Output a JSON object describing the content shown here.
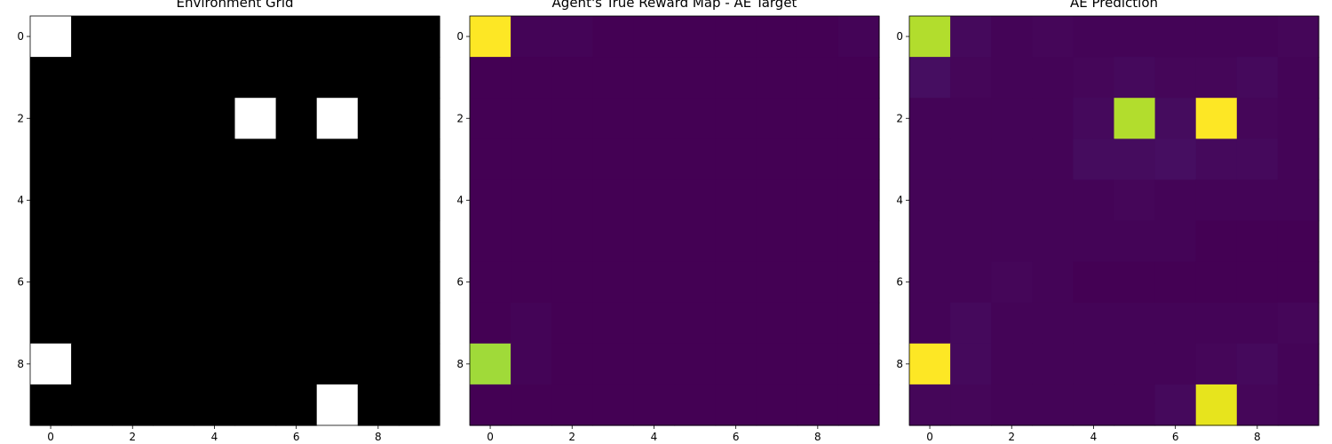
{
  "chart_data": [
    {
      "type": "heatmap",
      "title": "Environment Grid",
      "colormap": "gray",
      "vmin": 0,
      "vmax": 1,
      "x_ticks": [
        0,
        2,
        4,
        6,
        8
      ],
      "y_ticks": [
        0,
        2,
        4,
        6,
        8
      ],
      "grid": false,
      "values": [
        [
          1,
          0,
          0,
          0,
          0,
          0,
          0,
          0,
          0,
          0
        ],
        [
          0,
          0,
          0,
          0,
          0,
          0,
          0,
          0,
          0,
          0
        ],
        [
          0,
          0,
          0,
          0,
          0,
          1,
          0,
          1,
          0,
          0
        ],
        [
          0,
          0,
          0,
          0,
          0,
          0,
          0,
          0,
          0,
          0
        ],
        [
          0,
          0,
          0,
          0,
          0,
          0,
          0,
          0,
          0,
          0
        ],
        [
          0,
          0,
          0,
          0,
          0,
          0,
          0,
          0,
          0,
          0
        ],
        [
          0,
          0,
          0,
          0,
          0,
          0,
          0,
          0,
          0,
          0
        ],
        [
          0,
          0,
          0,
          0,
          0,
          0,
          0,
          0,
          0,
          0
        ],
        [
          1,
          0,
          0,
          0,
          0,
          0,
          0,
          0,
          0,
          0
        ],
        [
          0,
          0,
          0,
          0,
          0,
          0,
          0,
          1,
          0,
          0
        ]
      ]
    },
    {
      "type": "heatmap",
      "title": "Agent's True Reward Map - AE Target",
      "colormap": "viridis",
      "vmin": 0,
      "vmax": 1,
      "x_ticks": [
        0,
        2,
        4,
        6,
        8
      ],
      "y_ticks": [
        0,
        2,
        4,
        6,
        8
      ],
      "grid": false,
      "values": [
        [
          1.0,
          0.01,
          0.01,
          0.0,
          0.0,
          0.0,
          0.0,
          0.0,
          0.0,
          0.01
        ],
        [
          0.0,
          0.0,
          0.0,
          0.0,
          0.0,
          0.0,
          0.0,
          0.0,
          0.0,
          0.0
        ],
        [
          0.0,
          0.0,
          0.0,
          0.0,
          0.0,
          0.0,
          0.0,
          0.0,
          0.0,
          0.0
        ],
        [
          0.0,
          0.0,
          0.0,
          0.0,
          0.0,
          0.0,
          0.0,
          0.0,
          0.0,
          0.0
        ],
        [
          0.0,
          0.0,
          0.0,
          0.0,
          0.0,
          0.0,
          0.0,
          0.0,
          0.0,
          0.0
        ],
        [
          0.0,
          0.0,
          0.0,
          0.0,
          0.0,
          0.0,
          0.0,
          0.0,
          0.0,
          0.0
        ],
        [
          0.0,
          0.0,
          0.0,
          0.0,
          0.0,
          0.0,
          0.0,
          0.0,
          0.0,
          0.0
        ],
        [
          0.0,
          0.01,
          0.0,
          0.0,
          0.0,
          0.0,
          0.0,
          0.0,
          0.0,
          0.0
        ],
        [
          0.82,
          0.01,
          0.0,
          0.0,
          0.0,
          0.0,
          0.0,
          0.0,
          0.0,
          0.0
        ],
        [
          0.0,
          0.0,
          0.0,
          0.0,
          0.0,
          0.0,
          0.0,
          0.0,
          0.0,
          0.0
        ]
      ]
    },
    {
      "type": "heatmap",
      "title": "AE Prediction",
      "colormap": "viridis",
      "vmin": 0,
      "vmax": 1,
      "x_ticks": [
        0,
        2,
        4,
        6,
        8
      ],
      "y_ticks": [
        0,
        2,
        4,
        6,
        8
      ],
      "grid": false,
      "values": [
        [
          0.86,
          0.03,
          0.01,
          0.02,
          0.01,
          0.01,
          0.01,
          0.01,
          0.01,
          0.02
        ],
        [
          0.05,
          0.02,
          0.01,
          0.01,
          0.02,
          0.03,
          0.02,
          0.02,
          0.03,
          0.01
        ],
        [
          0.01,
          0.01,
          0.01,
          0.01,
          0.03,
          0.86,
          0.04,
          1.0,
          0.02,
          0.01
        ],
        [
          0.01,
          0.01,
          0.01,
          0.01,
          0.04,
          0.04,
          0.05,
          0.03,
          0.03,
          0.01
        ],
        [
          0.01,
          0.01,
          0.01,
          0.01,
          0.01,
          0.02,
          0.01,
          0.01,
          0.01,
          0.01
        ],
        [
          0.01,
          0.01,
          0.01,
          0.01,
          0.01,
          0.01,
          0.01,
          0.0,
          0.0,
          0.0
        ],
        [
          0.01,
          0.01,
          0.02,
          0.01,
          0.0,
          0.0,
          0.0,
          0.0,
          0.0,
          0.0
        ],
        [
          0.01,
          0.03,
          0.01,
          0.01,
          0.01,
          0.01,
          0.01,
          0.01,
          0.01,
          0.02
        ],
        [
          1.0,
          0.03,
          0.01,
          0.01,
          0.01,
          0.01,
          0.01,
          0.02,
          0.03,
          0.01
        ],
        [
          0.02,
          0.02,
          0.01,
          0.01,
          0.01,
          0.01,
          0.03,
          0.96,
          0.02,
          0.01
        ]
      ]
    }
  ]
}
